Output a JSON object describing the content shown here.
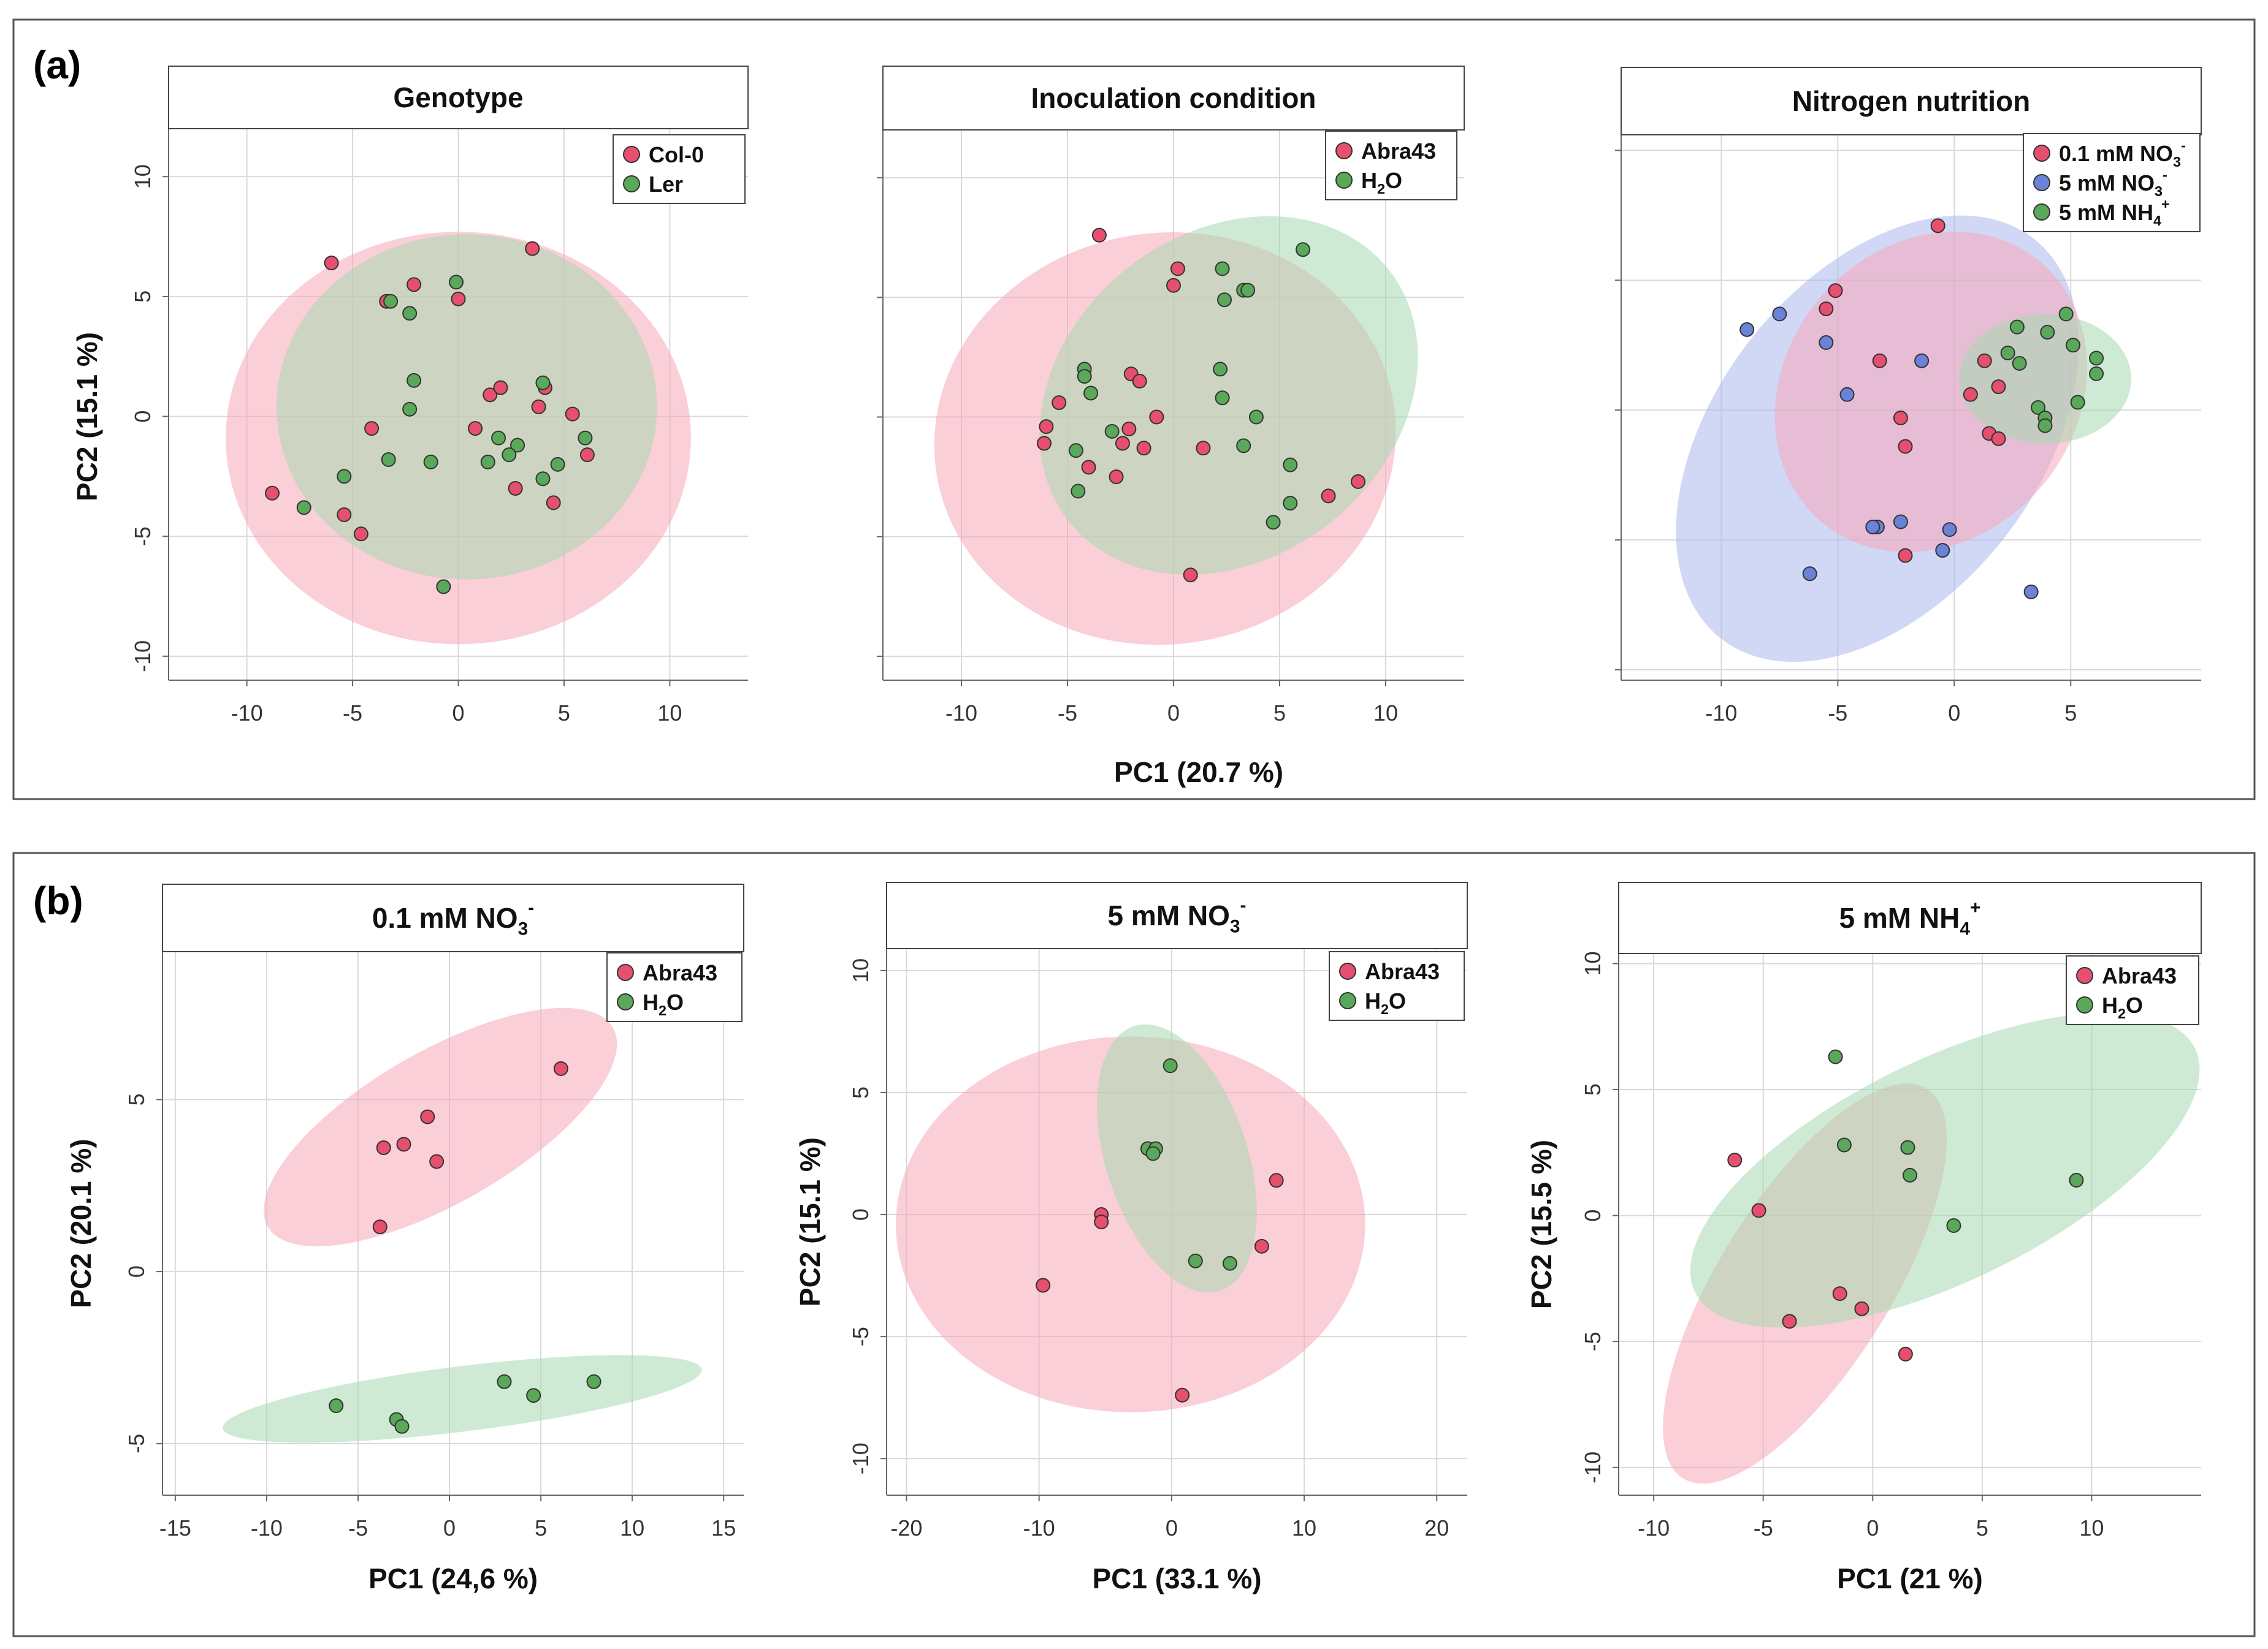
{
  "colors": {
    "pink_point": "#e6506e",
    "green_point": "#5aa85a",
    "blue_point": "#6a82d8",
    "pink_fill": "#f7a8b8",
    "green_fill": "#a8d9b0",
    "blue_fill": "#aab8ec",
    "frame": "#555555",
    "grid": "#d9d9d9"
  },
  "figure": {
    "panel_a_label": "(a)",
    "panel_b_label": "(b)",
    "a_xlabel": "PC1 (20.7 %)",
    "a_ylabel": "PC2 (15.1 %)"
  },
  "chart_data": [
    {
      "id": "a1",
      "type": "scatter",
      "title": "Genotype",
      "xlim": [
        -13.7,
        13.7
      ],
      "ylim": [
        -11,
        12
      ],
      "xticks": [
        -10,
        -5,
        0,
        5,
        10
      ],
      "yticks": [
        -10,
        -5,
        0,
        5,
        10
      ],
      "show_xticks": true,
      "show_yticks": true,
      "xlabel": "",
      "ylabel": "",
      "legend": [
        {
          "label": "Col-0",
          "group": "pink"
        },
        {
          "label": "Ler",
          "group": "green"
        }
      ],
      "ellipses": [
        {
          "group": "pink",
          "cx": 0,
          "cy": -0.9,
          "rx": 11,
          "ry": 8.6,
          "angle": 0
        },
        {
          "group": "green",
          "cx": 0.4,
          "cy": 0.4,
          "rx": 9,
          "ry": 7.2,
          "angle": 0
        }
      ],
      "series": [
        {
          "name": "Col-0",
          "group": "pink",
          "points": [
            [
              -6,
              6.4
            ],
            [
              -3.4,
              4.8
            ],
            [
              -2.1,
              5.5
            ],
            [
              0,
              4.9
            ],
            [
              3.5,
              7
            ],
            [
              -4.1,
              -0.5
            ],
            [
              0.8,
              -0.5
            ],
            [
              1.5,
              0.9
            ],
            [
              2,
              1.2
            ],
            [
              3.8,
              0.4
            ],
            [
              4.1,
              1.2
            ],
            [
              5.4,
              0.1
            ],
            [
              6.1,
              -1.6
            ],
            [
              2.7,
              -3
            ],
            [
              4.5,
              -3.6
            ],
            [
              -8.8,
              -3.2
            ],
            [
              -5.4,
              -4.1
            ],
            [
              -4.6,
              -4.9
            ]
          ]
        },
        {
          "name": "Ler",
          "group": "green",
          "points": [
            [
              -3.2,
              4.8
            ],
            [
              -2.3,
              4.3
            ],
            [
              -0.1,
              5.6
            ],
            [
              -2.1,
              1.5
            ],
            [
              -2.3,
              0.3
            ],
            [
              4,
              1.4
            ],
            [
              1.9,
              -0.9
            ],
            [
              2.8,
              -1.2
            ],
            [
              6,
              -0.9
            ],
            [
              -3.3,
              -1.8
            ],
            [
              -1.3,
              -1.9
            ],
            [
              1.4,
              -1.9
            ],
            [
              2.4,
              -1.6
            ],
            [
              4,
              -2.6
            ],
            [
              4.7,
              -2
            ],
            [
              -5.4,
              -2.5
            ],
            [
              -7.3,
              -3.8
            ],
            [
              -0.7,
              -7.1
            ]
          ]
        }
      ]
    },
    {
      "id": "a2",
      "type": "scatter",
      "title": "Inoculation condition",
      "xlim": [
        -13.7,
        13.7
      ],
      "ylim": [
        -11,
        12
      ],
      "xticks": [
        -10,
        -5,
        0,
        5,
        10
      ],
      "yticks": [
        -10,
        -5,
        0,
        5,
        10
      ],
      "show_xticks": true,
      "show_yticks": false,
      "xlabel": "",
      "ylabel": "",
      "legend": [
        {
          "label": "Abra43",
          "group": "pink",
          "sub": ""
        },
        {
          "label": "H",
          "group": "green",
          "sub": "2",
          "tail": "O"
        }
      ],
      "ellipses": [
        {
          "group": "pink",
          "cx": -0.4,
          "cy": -0.9,
          "rx": 10.9,
          "ry": 8.6,
          "angle": 8
        },
        {
          "group": "green",
          "cx": 2.6,
          "cy": 0.9,
          "rx": 9.6,
          "ry": 6.8,
          "angle": 38
        }
      ],
      "series": [
        {
          "name": "Abra43",
          "group": "pink",
          "points": [
            [
              -3.5,
              7.6
            ],
            [
              0.2,
              6.2
            ],
            [
              0,
              5.5
            ],
            [
              -2,
              1.8
            ],
            [
              -1.6,
              1.5
            ],
            [
              -5.4,
              0.6
            ],
            [
              -0.8,
              0
            ],
            [
              -2.1,
              -0.5
            ],
            [
              -6,
              -0.4
            ],
            [
              -6.1,
              -1.1
            ],
            [
              -2.4,
              -1.1
            ],
            [
              -1.4,
              -1.3
            ],
            [
              1.4,
              -1.3
            ],
            [
              -2.7,
              -2.5
            ],
            [
              -4,
              -2.1
            ],
            [
              7.3,
              -3.3
            ],
            [
              8.7,
              -2.7
            ],
            [
              0.8,
              -6.6
            ]
          ]
        },
        {
          "name": "H2O",
          "group": "green",
          "points": [
            [
              6.1,
              7
            ],
            [
              2.3,
              6.2
            ],
            [
              3.3,
              5.3
            ],
            [
              3.5,
              5.3
            ],
            [
              2.4,
              4.9
            ],
            [
              -4.2,
              2
            ],
            [
              -4.2,
              1.7
            ],
            [
              2.2,
              2
            ],
            [
              -3.9,
              1
            ],
            [
              2.3,
              0.8
            ],
            [
              3.9,
              0
            ],
            [
              -2.9,
              -0.6
            ],
            [
              -4.6,
              -1.4
            ],
            [
              -4.5,
              -3.1
            ],
            [
              3.3,
              -1.2
            ],
            [
              5.5,
              -2
            ],
            [
              5.5,
              -3.6
            ],
            [
              4.7,
              -4.4
            ]
          ]
        }
      ]
    },
    {
      "id": "a3",
      "type": "scatter",
      "title": "Nitrogen nutrition",
      "xlim": [
        -14.3,
        10.6
      ],
      "ylim": [
        -10.4,
        10.6
      ],
      "xticks": [
        -10,
        -5,
        0,
        5
      ],
      "yticks": [
        -10,
        -5,
        0,
        5,
        10
      ],
      "show_xticks": true,
      "show_yticks": false,
      "xlabel": "",
      "ylabel": "",
      "legend": [
        {
          "label": "0.1 mM NO",
          "group": "pink",
          "sub": "3",
          "sup": "-"
        },
        {
          "label": "5 mM NO",
          "group": "blue",
          "sub": "3",
          "sup": "-"
        },
        {
          "label": "5 mM NH",
          "group": "green",
          "sub": "4",
          "sup": "+"
        }
      ],
      "ellipses": [
        {
          "group": "blue",
          "cx": -3.3,
          "cy": -1.1,
          "rx": 10.9,
          "ry": 6.2,
          "angle": 52
        },
        {
          "group": "pink",
          "cx": -1,
          "cy": 0.7,
          "rx": 7.3,
          "ry": 5.6,
          "angle": 50
        },
        {
          "group": "green",
          "cx": 3.9,
          "cy": 1.2,
          "rx": 3.7,
          "ry": 2.5,
          "angle": 0
        }
      ],
      "series": [
        {
          "name": "0.1 mM NO3-",
          "group": "pink",
          "points": [
            [
              -0.7,
              7.1
            ],
            [
              -5.1,
              4.6
            ],
            [
              -5.5,
              3.9
            ],
            [
              -3.2,
              1.9
            ],
            [
              0.7,
              0.6
            ],
            [
              1.3,
              1.9
            ],
            [
              1.9,
              0.9
            ],
            [
              -2.3,
              -0.3
            ],
            [
              -2.1,
              -1.4
            ],
            [
              1.5,
              -0.9
            ],
            [
              1.9,
              -1.1
            ],
            [
              -2.1,
              -5.6
            ]
          ]
        },
        {
          "name": "5 mM NO3-",
          "group": "blue",
          "points": [
            [
              -8.9,
              3.1
            ],
            [
              -7.5,
              3.7
            ],
            [
              -5.5,
              2.6
            ],
            [
              -1.4,
              1.9
            ],
            [
              -4.6,
              0.6
            ],
            [
              -3.3,
              -4.5
            ],
            [
              -3.5,
              -4.5
            ],
            [
              -2.3,
              -4.3
            ],
            [
              -0.2,
              -4.6
            ],
            [
              -0.5,
              -5.4
            ],
            [
              -6.2,
              -6.3
            ],
            [
              3.3,
              -7
            ]
          ]
        },
        {
          "name": "5 mM NH4+",
          "group": "green",
          "points": [
            [
              4.8,
              3.7
            ],
            [
              2.7,
              3.2
            ],
            [
              4,
              3
            ],
            [
              5.1,
              2.5
            ],
            [
              2.3,
              2.2
            ],
            [
              2.8,
              1.8
            ],
            [
              6.1,
              2
            ],
            [
              6.1,
              1.4
            ],
            [
              3.6,
              0.1
            ],
            [
              5.3,
              0.3
            ],
            [
              3.9,
              -0.3
            ],
            [
              3.9,
              -0.6
            ]
          ]
        }
      ]
    },
    {
      "id": "b1",
      "type": "scatter",
      "title": "0.1 mM NO",
      "title_sub": "3",
      "title_sup": "-",
      "xlim": [
        -15.7,
        16.1
      ],
      "ylim": [
        -6.5,
        9.3
      ],
      "xticks": [
        -15,
        -10,
        -5,
        0,
        5,
        10,
        15
      ],
      "yticks": [
        -5,
        0,
        5
      ],
      "show_xticks": true,
      "show_yticks": true,
      "xlabel": "PC1 (24,6 %)",
      "ylabel": "PC2 (20.1 %)",
      "legend": [
        {
          "label": "Abra43",
          "group": "pink",
          "sub": ""
        },
        {
          "label": "H",
          "group": "green",
          "sub": "2",
          "tail": "O"
        }
      ],
      "ellipses": [
        {
          "group": "pink",
          "cx": -0.5,
          "cy": 4.2,
          "rx": 10.9,
          "ry": 2.2,
          "angle": 30
        },
        {
          "group": "green",
          "cx": 0.7,
          "cy": -3.7,
          "rx": 13.2,
          "ry": 0.95,
          "angle": 7
        }
      ],
      "series": [
        {
          "name": "Abra43",
          "group": "pink",
          "points": [
            [
              6.1,
              5.9
            ],
            [
              -1.2,
              4.5
            ],
            [
              -2.5,
              3.7
            ],
            [
              -3.6,
              3.6
            ],
            [
              -0.7,
              3.2
            ],
            [
              -3.8,
              1.3
            ]
          ]
        },
        {
          "name": "H2O",
          "group": "green",
          "points": [
            [
              -6.2,
              -3.9
            ],
            [
              -2.9,
              -4.3
            ],
            [
              -2.6,
              -4.5
            ],
            [
              3,
              -3.2
            ],
            [
              4.6,
              -3.6
            ],
            [
              7.9,
              -3.2
            ]
          ]
        }
      ]
    },
    {
      "id": "b2",
      "type": "scatter",
      "title": "5 mM NO",
      "title_sub": "3",
      "title_sup": "-",
      "xlim": [
        -21.5,
        22.3
      ],
      "ylim": [
        -11.5,
        10.9
      ],
      "xticks": [
        -20,
        -10,
        0,
        10,
        20
      ],
      "yticks": [
        -10,
        -5,
        0,
        5,
        10
      ],
      "show_xticks": true,
      "show_yticks": true,
      "xlabel": "PC1 (33.1 %)",
      "ylabel": "PC2 (15.1 %)",
      "legend": [
        {
          "label": "Abra43",
          "group": "pink",
          "sub": ""
        },
        {
          "label": "H",
          "group": "green",
          "sub": "2",
          "tail": "O"
        }
      ],
      "ellipses": [
        {
          "group": "pink",
          "cx": -3.1,
          "cy": -0.4,
          "rx": 17.7,
          "ry": 7.7,
          "angle": 0
        },
        {
          "group": "green",
          "cx": 0.4,
          "cy": 2.3,
          "rx": 10.5,
          "ry": 2.9,
          "angle": -72
        }
      ],
      "series": [
        {
          "name": "Abra43",
          "group": "pink",
          "points": [
            [
              -5.3,
              0
            ],
            [
              -5.3,
              -0.3
            ],
            [
              7.9,
              1.4
            ],
            [
              6.8,
              -1.3
            ],
            [
              -9.7,
              -2.9
            ],
            [
              0.8,
              -7.4
            ]
          ]
        },
        {
          "name": "H2O",
          "group": "green",
          "points": [
            [
              -0.1,
              6.1
            ],
            [
              -1.8,
              2.7
            ],
            [
              -1.2,
              2.7
            ],
            [
              -1.4,
              2.5
            ],
            [
              1.8,
              -1.9
            ],
            [
              4.4,
              -2
            ]
          ]
        }
      ]
    },
    {
      "id": "b3",
      "type": "scatter",
      "title": "5 mM NH",
      "title_sub": "4",
      "title_sup": "+",
      "xlim": [
        -11.6,
        15
      ],
      "ylim": [
        -11.1,
        10.4
      ],
      "xticks": [
        -10,
        -5,
        0,
        5,
        10
      ],
      "yticks": [
        -10,
        -5,
        0,
        5,
        10
      ],
      "show_xticks": true,
      "show_yticks": true,
      "xlabel": "PC1 (21 %)",
      "ylabel": "PC2 (15.5 %)",
      "legend": [
        {
          "label": "Abra43",
          "group": "pink",
          "sub": ""
        },
        {
          "label": "H",
          "group": "green",
          "sub": "2",
          "tail": "O"
        }
      ],
      "ellipses": [
        {
          "group": "pink",
          "cx": -3.1,
          "cy": -2.7,
          "rx": 10.5,
          "ry": 3.4,
          "angle": 58
        },
        {
          "group": "green",
          "cx": 3.3,
          "cy": 1.8,
          "rx": 12.7,
          "ry": 4.4,
          "angle": 26
        }
      ],
      "series": [
        {
          "name": "Abra43",
          "group": "pink",
          "points": [
            [
              -6.3,
              2.2
            ],
            [
              -5.2,
              0.2
            ],
            [
              -1.5,
              -3.1
            ],
            [
              -0.5,
              -3.7
            ],
            [
              -3.8,
              -4.2
            ],
            [
              1.5,
              -5.5
            ]
          ]
        },
        {
          "name": "H2O",
          "group": "green",
          "points": [
            [
              -1.7,
              6.3
            ],
            [
              -1.3,
              2.8
            ],
            [
              1.6,
              2.7
            ],
            [
              1.7,
              1.6
            ],
            [
              3.7,
              -0.4
            ],
            [
              9.3,
              1.4
            ]
          ]
        }
      ]
    }
  ]
}
